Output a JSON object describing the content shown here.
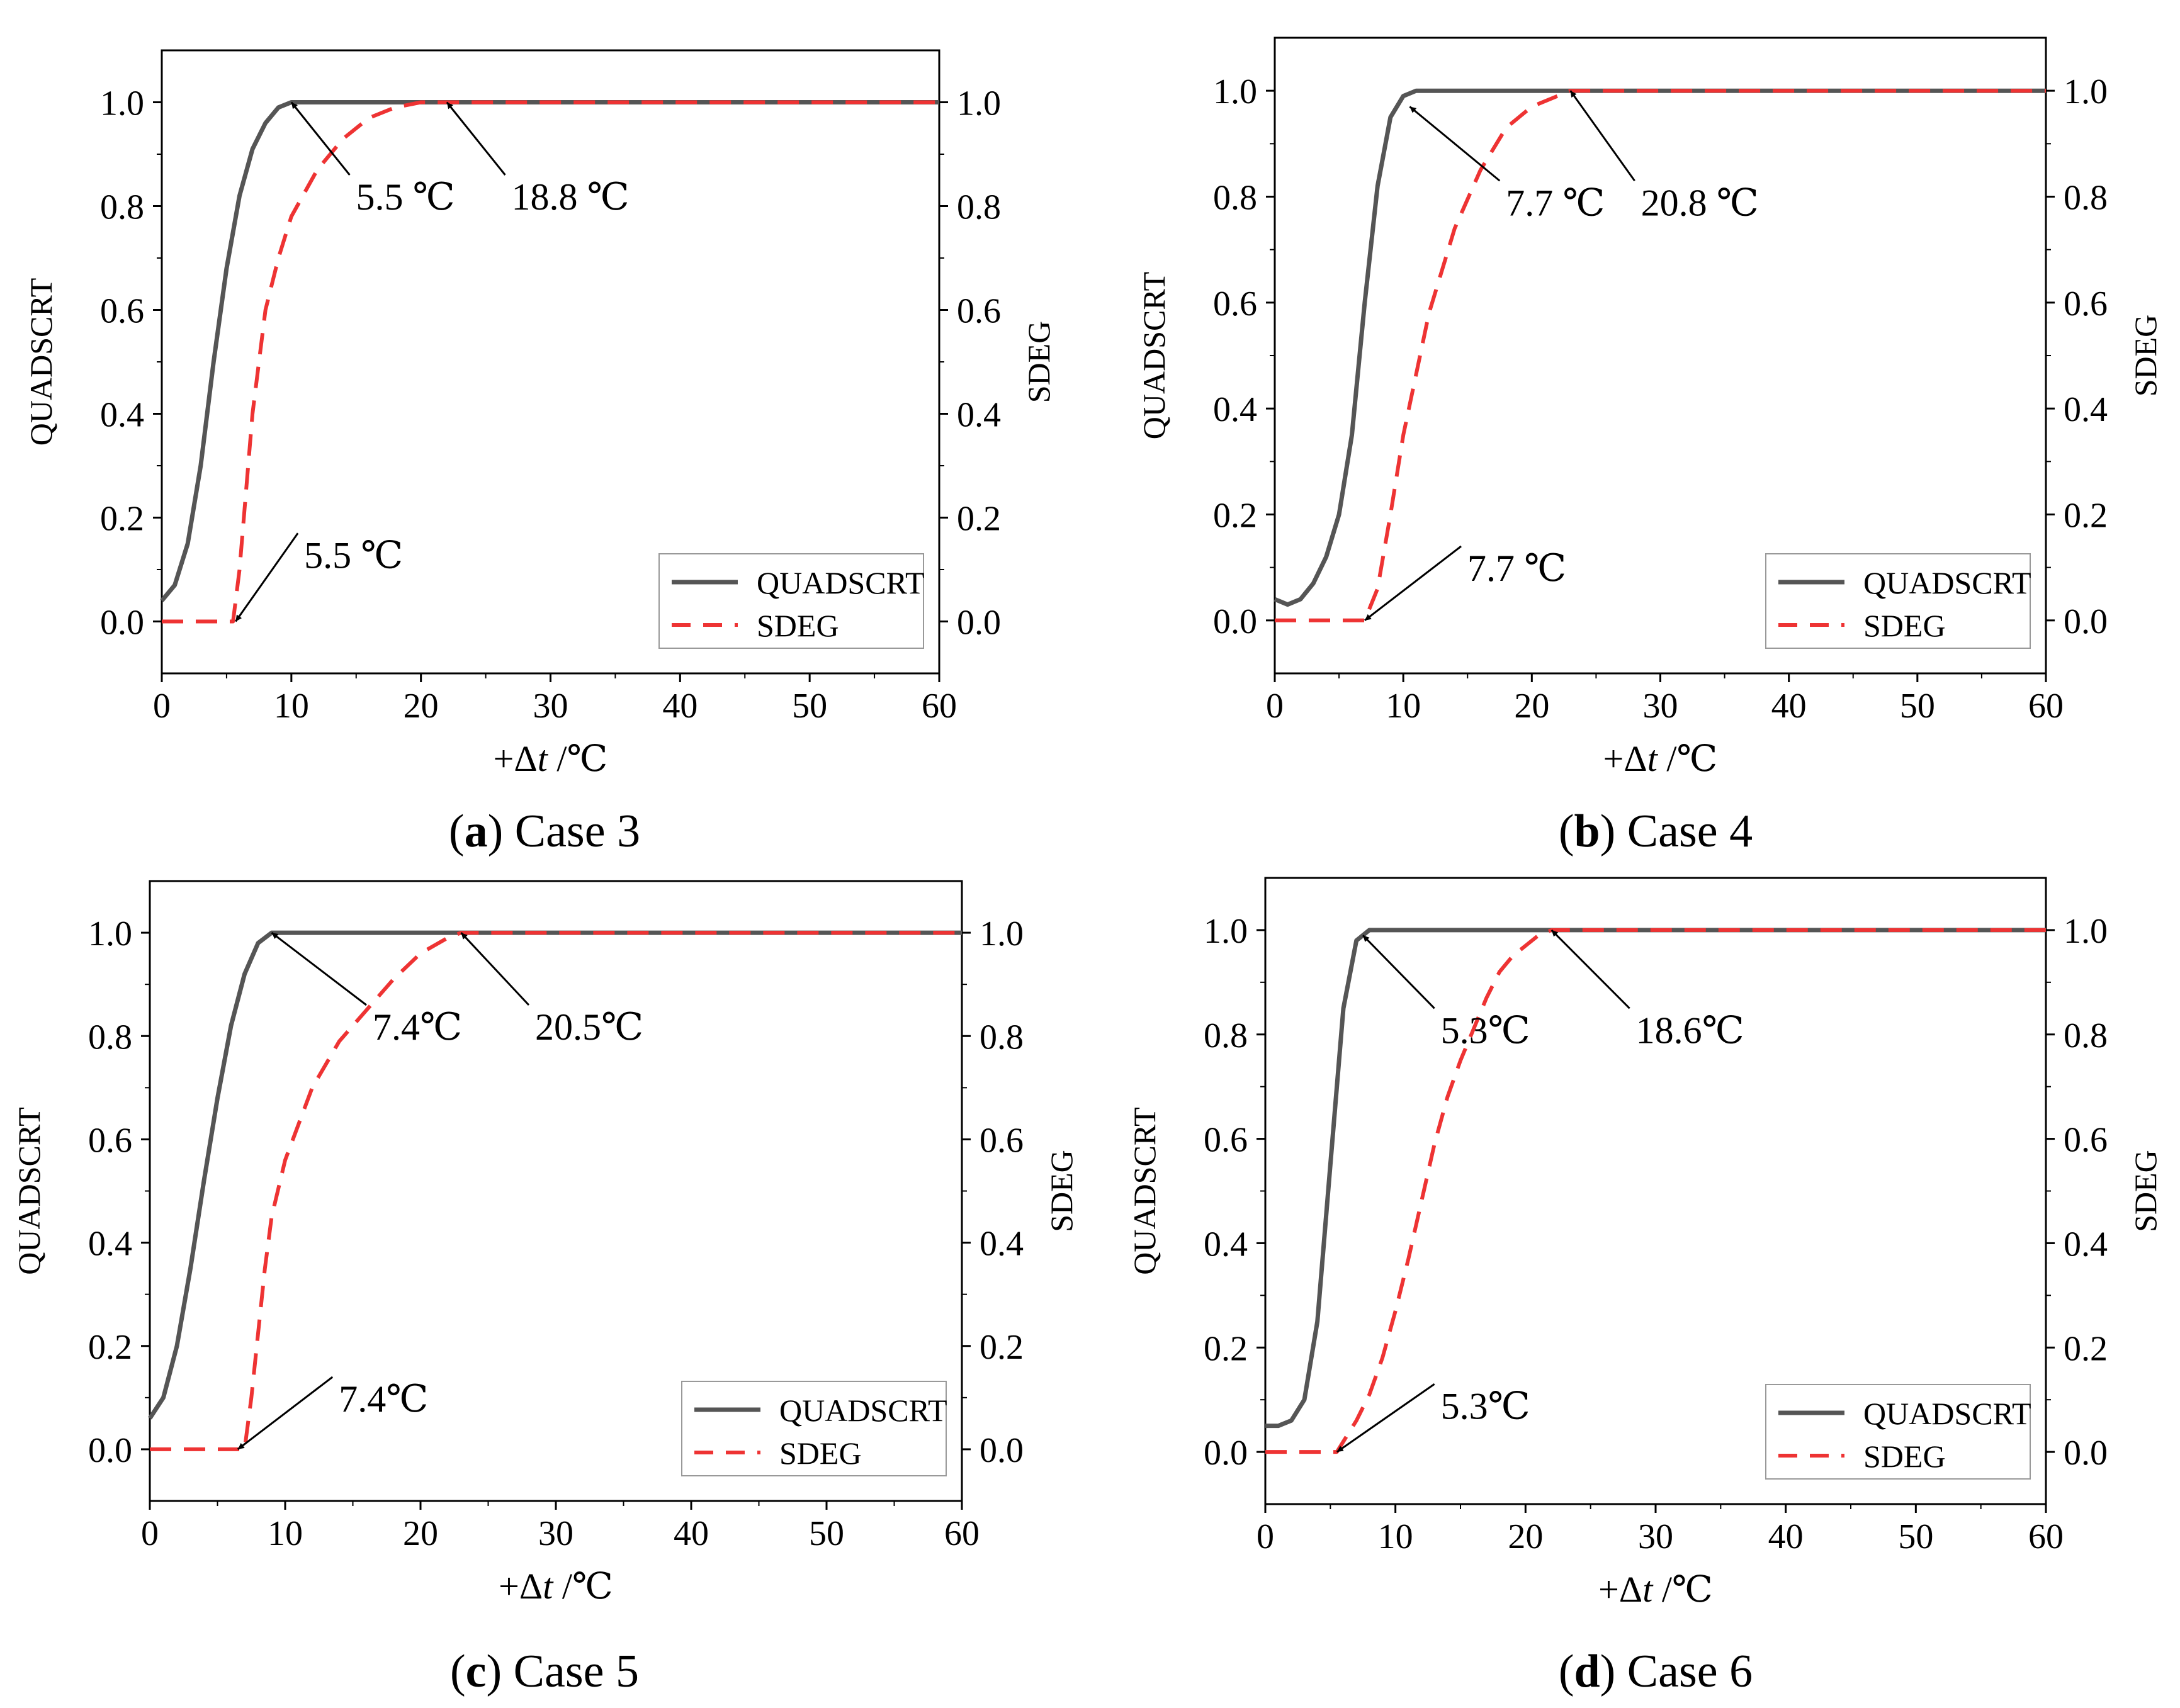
{
  "chart_data": [
    {
      "panel_letter": "a",
      "caption_text": " Case 3",
      "type": "line",
      "x_range": [
        0,
        60
      ],
      "y_range": [
        -0.1,
        1.1
      ],
      "x_ticks": [
        "0",
        "10",
        "20",
        "30",
        "40",
        "50",
        "60"
      ],
      "y_ticks": [
        "0.0",
        "0.2",
        "0.4",
        "0.6",
        "0.8",
        "1.0"
      ],
      "y_tick_values": [
        0,
        0.2,
        0.4,
        0.6,
        0.8,
        1.0
      ],
      "x_tick_values": [
        0,
        10,
        20,
        30,
        40,
        50,
        60
      ],
      "xlabel_prefix": "+Δ",
      "xlabel_var": "t",
      "xlabel_unit": " /℃",
      "ylabel_left": "QUADSCRT",
      "ylabel_right": "SDEG",
      "legend": [
        "QUADSCRT",
        "SDEG"
      ],
      "legend_position": "bottom-right",
      "series": [
        {
          "name": "QUADSCRT",
          "style": "solid",
          "color": "#555555",
          "x": [
            0,
            1,
            2,
            3,
            4,
            5,
            6,
            7,
            8,
            9,
            10,
            11,
            60
          ],
          "y": [
            0.04,
            0.07,
            0.15,
            0.3,
            0.5,
            0.68,
            0.82,
            0.91,
            0.96,
            0.99,
            1.0,
            1.0,
            1.0
          ]
        },
        {
          "name": "SDEG",
          "style": "dashed",
          "color": "#ee3333",
          "x": [
            0,
            5.5,
            6,
            7,
            8,
            9,
            10,
            12,
            14,
            16,
            18,
            20,
            22,
            60
          ],
          "y": [
            0,
            0,
            0.1,
            0.4,
            0.6,
            0.7,
            0.78,
            0.87,
            0.93,
            0.97,
            0.99,
            1.0,
            1.0,
            1.0
          ]
        }
      ],
      "annotations": [
        {
          "text": "5.5 ℃",
          "point": [
            10.0,
            1.0
          ],
          "label": [
            14.5,
            0.86
          ]
        },
        {
          "text": "18.8 ℃",
          "point": [
            22.0,
            1.0
          ],
          "label": [
            26.5,
            0.86
          ]
        },
        {
          "text": "5.5 ℃",
          "point": [
            5.7,
            0.0
          ],
          "label": [
            10.5,
            0.17
          ]
        }
      ]
    },
    {
      "panel_letter": "b",
      "caption_text": " Case 4",
      "type": "line",
      "x_range": [
        0,
        60
      ],
      "y_range": [
        -0.1,
        1.1
      ],
      "x_ticks": [
        "0",
        "10",
        "20",
        "30",
        "40",
        "50",
        "60"
      ],
      "y_ticks": [
        "0.0",
        "0.2",
        "0.4",
        "0.6",
        "0.8",
        "1.0"
      ],
      "y_tick_values": [
        0,
        0.2,
        0.4,
        0.6,
        0.8,
        1.0
      ],
      "x_tick_values": [
        0,
        10,
        20,
        30,
        40,
        50,
        60
      ],
      "xlabel_prefix": "+Δ",
      "xlabel_var": "t",
      "xlabel_unit": " /℃",
      "ylabel_left": "QUADSCRT",
      "ylabel_right": "SDEG",
      "legend": [
        "QUADSCRT",
        "SDEG"
      ],
      "legend_position": "bottom-right",
      "series": [
        {
          "name": "QUADSCRT",
          "style": "solid",
          "color": "#555555",
          "x": [
            0,
            1,
            2,
            3,
            4,
            5,
            6,
            7,
            8,
            9,
            10,
            11,
            60
          ],
          "y": [
            0.04,
            0.03,
            0.04,
            0.07,
            0.12,
            0.2,
            0.35,
            0.6,
            0.82,
            0.95,
            0.99,
            1.0,
            1.0
          ]
        },
        {
          "name": "SDEG",
          "style": "dashed",
          "color": "#ee3333",
          "x": [
            0,
            7,
            8,
            9,
            10,
            12,
            14,
            16,
            18,
            20,
            22,
            23,
            60
          ],
          "y": [
            0,
            0,
            0.06,
            0.2,
            0.35,
            0.58,
            0.74,
            0.85,
            0.93,
            0.97,
            0.99,
            1.0,
            1.0
          ]
        }
      ],
      "annotations": [
        {
          "text": "7.7 ℃",
          "point": [
            10.5,
            0.97
          ],
          "label": [
            17.5,
            0.83
          ]
        },
        {
          "text": "20.8 ℃",
          "point": [
            23.0,
            1.0
          ],
          "label": [
            28.0,
            0.83
          ]
        },
        {
          "text": "7.7 ℃",
          "point": [
            7.0,
            0.0
          ],
          "label": [
            14.5,
            0.14
          ]
        }
      ]
    },
    {
      "panel_letter": "c",
      "caption_text": " Case 5",
      "type": "line",
      "x_range": [
        0,
        60
      ],
      "y_range": [
        -0.1,
        1.1
      ],
      "x_ticks": [
        "0",
        "10",
        "20",
        "30",
        "40",
        "50",
        "60"
      ],
      "y_ticks": [
        "0.0",
        "0.2",
        "0.4",
        "0.6",
        "0.8",
        "1.0"
      ],
      "y_tick_values": [
        0,
        0.2,
        0.4,
        0.6,
        0.8,
        1.0
      ],
      "x_tick_values": [
        0,
        10,
        20,
        30,
        40,
        50,
        60
      ],
      "xlabel_prefix": "+Δ",
      "xlabel_var": "t",
      "xlabel_unit": " /℃",
      "ylabel_left": "QUADSCRT",
      "ylabel_right": "SDEG",
      "legend": [
        "QUADSCRT",
        "SDEG"
      ],
      "legend_position": "bottom-right",
      "series": [
        {
          "name": "QUADSCRT",
          "style": "solid",
          "color": "#555555",
          "x": [
            0,
            1,
            2,
            3,
            4,
            5,
            6,
            7,
            8,
            9,
            10,
            60
          ],
          "y": [
            0.06,
            0.1,
            0.2,
            0.35,
            0.52,
            0.68,
            0.82,
            0.92,
            0.98,
            1.0,
            1.0,
            1.0
          ]
        },
        {
          "name": "SDEG",
          "style": "dashed",
          "color": "#ee3333",
          "x": [
            0,
            7,
            7.5,
            8.5,
            9,
            10,
            12,
            14,
            16,
            18,
            20,
            22,
            23,
            60
          ],
          "y": [
            0,
            0,
            0.1,
            0.35,
            0.45,
            0.56,
            0.7,
            0.79,
            0.85,
            0.91,
            0.96,
            0.99,
            1.0,
            1.0
          ]
        }
      ],
      "annotations": [
        {
          "text": "7.4℃",
          "point": [
            9.0,
            1.0
          ],
          "label": [
            16.0,
            0.86
          ]
        },
        {
          "text": "20.5℃",
          "point": [
            23.0,
            1.0
          ],
          "label": [
            28.0,
            0.86
          ]
        },
        {
          "text": "7.4℃",
          "point": [
            6.5,
            0.0
          ],
          "label": [
            13.5,
            0.14
          ]
        }
      ]
    },
    {
      "panel_letter": "d",
      "caption_text": " Case 6",
      "type": "line",
      "x_range": [
        0,
        60
      ],
      "y_range": [
        -0.1,
        1.1
      ],
      "x_ticks": [
        "0",
        "10",
        "20",
        "30",
        "40",
        "50",
        "60"
      ],
      "y_ticks": [
        "0.0",
        "0.2",
        "0.4",
        "0.6",
        "0.8",
        "1.0"
      ],
      "y_tick_values": [
        0,
        0.2,
        0.4,
        0.6,
        0.8,
        1.0
      ],
      "x_tick_values": [
        0,
        10,
        20,
        30,
        40,
        50,
        60
      ],
      "xlabel_prefix": "+Δ",
      "xlabel_var": "t",
      "xlabel_unit": " /℃",
      "ylabel_left": "QUADSCRT",
      "ylabel_right": "SDEG",
      "legend": [
        "QUADSCRT",
        "SDEG"
      ],
      "legend_position": "bottom-right",
      "series": [
        {
          "name": "QUADSCRT",
          "style": "solid",
          "color": "#555555",
          "x": [
            0,
            1,
            2,
            3,
            4,
            5,
            6,
            7,
            8,
            60
          ],
          "y": [
            0.05,
            0.05,
            0.06,
            0.1,
            0.25,
            0.55,
            0.85,
            0.98,
            1.0,
            1.0
          ]
        },
        {
          "name": "SDEG",
          "style": "dashed",
          "color": "#ee3333",
          "x": [
            0,
            5.5,
            6,
            7,
            8,
            9,
            10,
            11,
            12,
            13,
            14,
            15,
            16,
            17,
            18,
            19,
            20,
            21,
            22,
            60
          ],
          "y": [
            0,
            0,
            0.02,
            0.06,
            0.11,
            0.18,
            0.27,
            0.37,
            0.48,
            0.59,
            0.68,
            0.75,
            0.81,
            0.87,
            0.92,
            0.95,
            0.97,
            0.99,
            1.0,
            1.0
          ]
        }
      ],
      "annotations": [
        {
          "text": "5.3℃",
          "point": [
            7.5,
            0.99
          ],
          "label": [
            13.0,
            0.85
          ]
        },
        {
          "text": "18.6℃",
          "point": [
            22.0,
            1.0
          ],
          "label": [
            28.0,
            0.85
          ]
        },
        {
          "text": "5.3℃",
          "point": [
            5.5,
            0.0
          ],
          "label": [
            13.0,
            0.13
          ]
        }
      ]
    }
  ]
}
